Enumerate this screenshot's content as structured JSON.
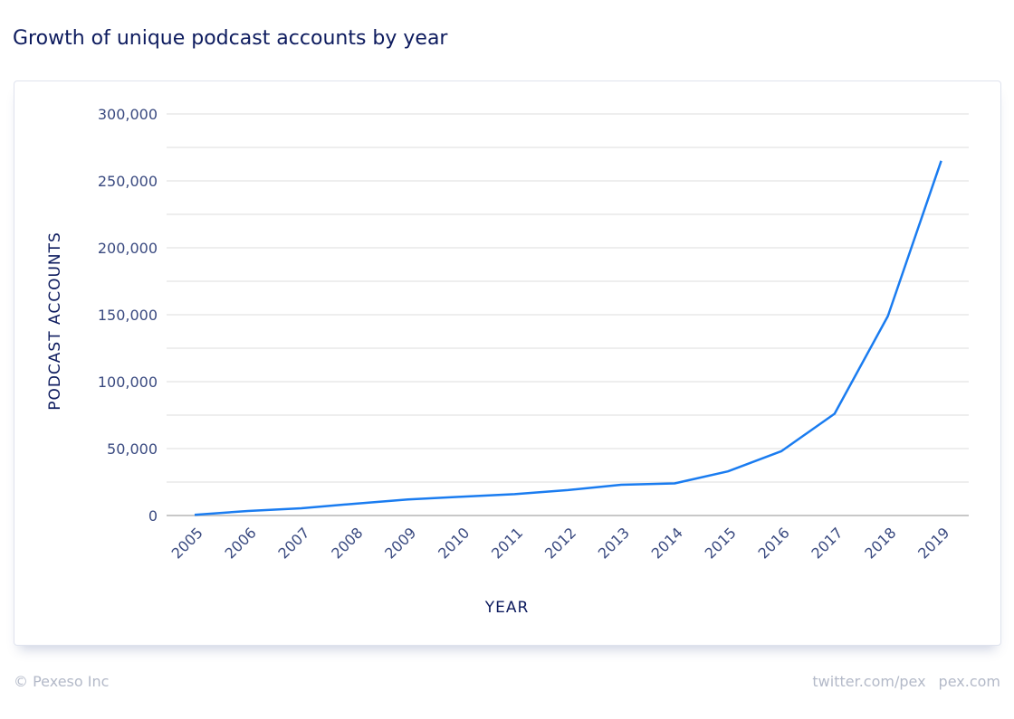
{
  "header": {
    "title": "Growth of unique podcast accounts by year"
  },
  "footer": {
    "copyright": "© Pexeso Inc",
    "twitter": "twitter.com/pex",
    "site": "pex.com"
  },
  "chart_data": {
    "type": "line",
    "title": "Growth of unique podcast accounts by year",
    "xlabel": "YEAR",
    "ylabel": "PODCAST ACCOUNTS",
    "x": [
      "2005",
      "2006",
      "2007",
      "2008",
      "2009",
      "2010",
      "2011",
      "2012",
      "2013",
      "2014",
      "2015",
      "2016",
      "2017",
      "2018",
      "2019"
    ],
    "series": [
      {
        "values": [
          500,
          3400,
          5400,
          8800,
          12000,
          14000,
          16000,
          19000,
          23000,
          24000,
          33000,
          48000,
          76000,
          149000,
          265000
        ],
        "color": "#1a7cf0"
      }
    ],
    "ylim": [
      0,
      300000
    ],
    "yticks": [
      "0",
      "50,000",
      "100,000",
      "150,000",
      "200,000",
      "250,000",
      "300,000"
    ],
    "grid": true,
    "legend": "none"
  }
}
